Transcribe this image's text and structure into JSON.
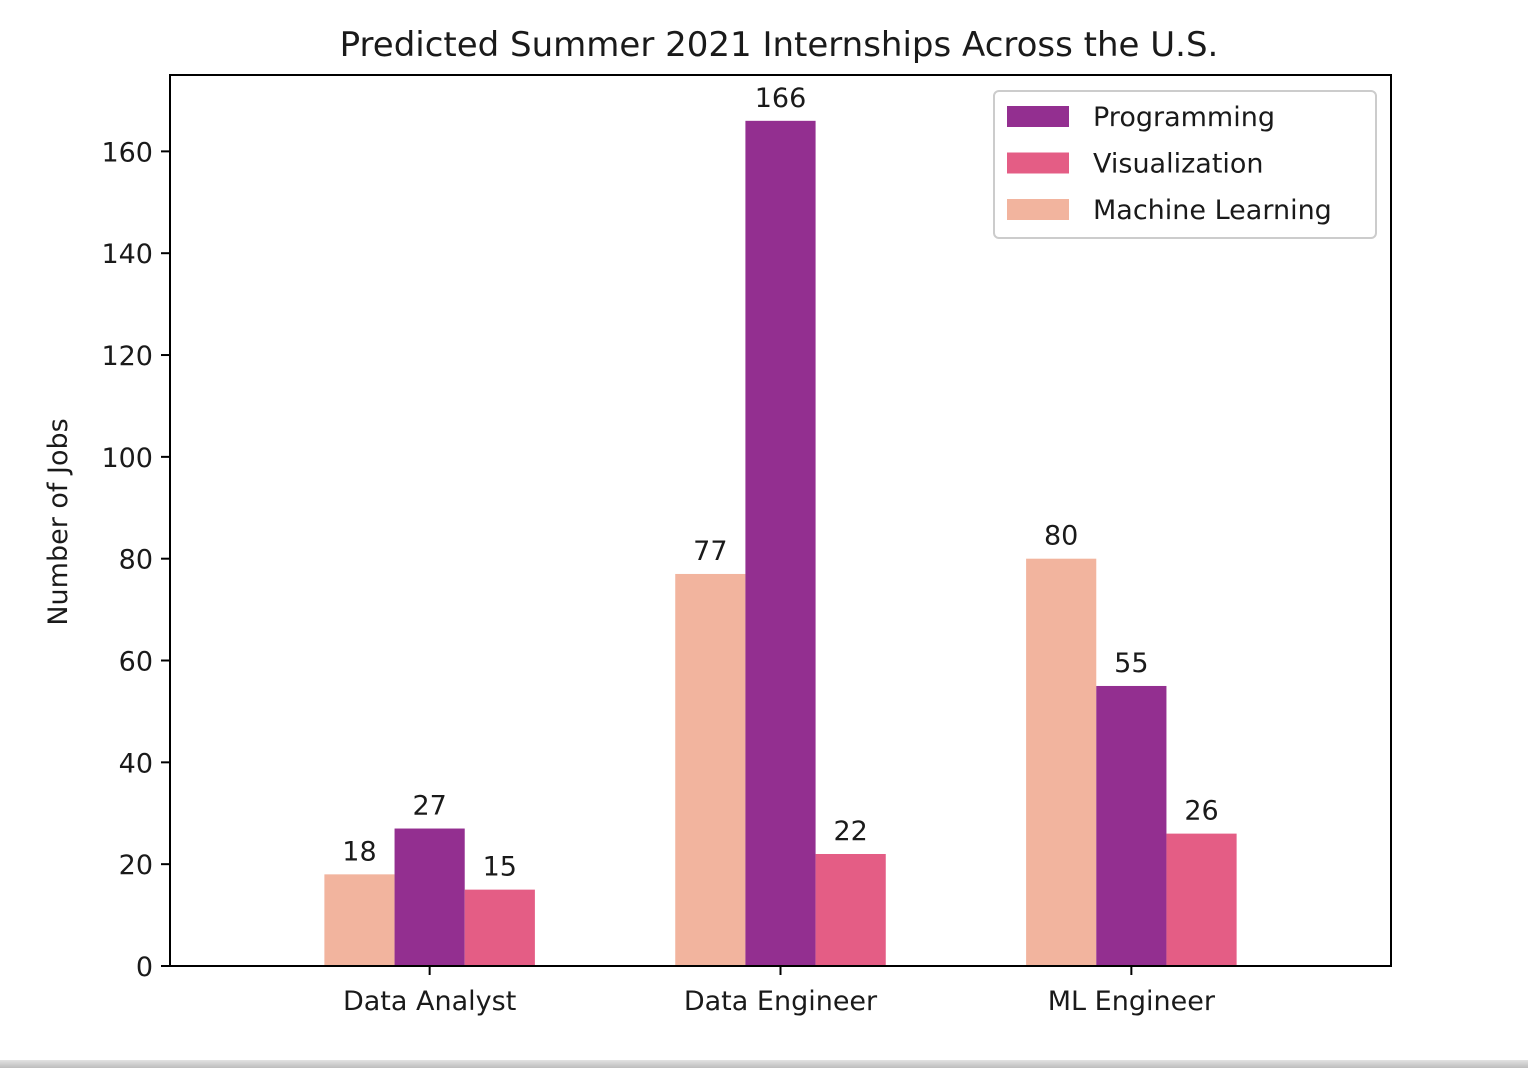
{
  "chart_data": {
    "type": "bar",
    "title": "Predicted Summer 2021 Internships Across the U.S.",
    "xlabel": "",
    "ylabel": "Number of Jobs",
    "categories": [
      "Data Analyst",
      "Data Engineer",
      "ML Engineer"
    ],
    "series": [
      {
        "name": "Machine Learning",
        "color": "#f2b49e",
        "values": [
          18,
          77,
          80
        ]
      },
      {
        "name": "Programming",
        "color": "#932f90",
        "values": [
          27,
          166,
          55
        ]
      },
      {
        "name": "Visualization",
        "color": "#e45d85",
        "values": [
          15,
          22,
          26
        ]
      }
    ],
    "ylim": [
      0,
      175
    ],
    "yticks": [
      0,
      20,
      40,
      60,
      80,
      100,
      120,
      140,
      160
    ],
    "legend": {
      "placement": "top-right",
      "order": [
        "Programming",
        "Visualization",
        "Machine Learning"
      ]
    },
    "grid": false
  }
}
